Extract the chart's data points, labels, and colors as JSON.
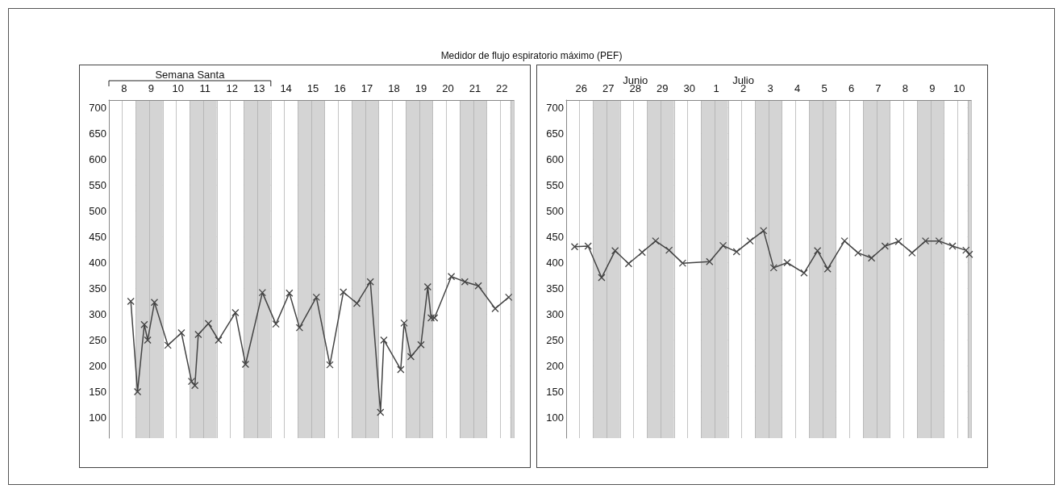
{
  "chart_data": [
    {
      "type": "line",
      "title": "Medidor de flujo espiratorio máximo (PEF)",
      "color": "#444444",
      "marker": "cross",
      "line_style": "solid",
      "grid": true,
      "categories": [
        null,
        null,
        null,
        null,
        "8",
        null,
        null,
        null,
        null,
        null,
        null,
        null,
        "9",
        null,
        null,
        null,
        null,
        null,
        null,
        null,
        "10",
        null,
        null,
        null,
        null,
        null,
        null,
        null,
        "11",
        null,
        null,
        null,
        null,
        null,
        null,
        null,
        "12",
        null,
        null,
        null,
        null,
        null,
        null,
        null,
        "13",
        null,
        null,
        null,
        null,
        null,
        null,
        null,
        "14",
        null,
        null,
        null,
        null,
        null,
        null,
        null,
        "15",
        null,
        null,
        null,
        null,
        null,
        null,
        null,
        "16",
        null,
        null,
        null,
        null,
        null,
        null,
        null,
        "17",
        null,
        null,
        null,
        null,
        null,
        null,
        null,
        "18",
        null,
        null,
        null,
        null,
        null,
        null,
        null,
        "19",
        null,
        null,
        null,
        null,
        null,
        null,
        null,
        "20",
        null,
        null,
        null,
        null,
        null,
        null,
        null,
        "21",
        null,
        null,
        null,
        null,
        null,
        null,
        null,
        "22",
        null,
        null,
        null
      ],
      "values": [
        null,
        null,
        null,
        null,
        null,
        null,
        325,
        null,
        150,
        null,
        280,
        250,
        null,
        323,
        null,
        null,
        null,
        240,
        null,
        null,
        null,
        264,
        null,
        null,
        170,
        162,
        261,
        null,
        null,
        282,
        null,
        null,
        250,
        null,
        null,
        null,
        null,
        303,
        null,
        null,
        203,
        null,
        null,
        null,
        null,
        342,
        null,
        null,
        null,
        281,
        null,
        null,
        null,
        341,
        null,
        null,
        274,
        null,
        null,
        null,
        null,
        333,
        null,
        null,
        null,
        202,
        null,
        null,
        null,
        343,
        null,
        null,
        null,
        321,
        null,
        null,
        null,
        363,
        null,
        null,
        110,
        250,
        null,
        null,
        null,
        null,
        193,
        283,
        null,
        218,
        null,
        null,
        241,
        null,
        353,
        293,
        293,
        null,
        null,
        null,
        null,
        373,
        null,
        null,
        null,
        363,
        null,
        null,
        null,
        355,
        null,
        null,
        null,
        null,
        311,
        null,
        null,
        null,
        333,
        null
      ],
      "ylim": [
        60,
        715
      ],
      "yticks": [
        100,
        150,
        200,
        250,
        300,
        350,
        400,
        450,
        500,
        550,
        600,
        650,
        700
      ],
      "annotations": [
        "Semana Santa"
      ]
    },
    {
      "type": "line",
      "color": "#444444",
      "marker": "cross",
      "line_style": "solid",
      "grid": true,
      "categories": [
        null,
        null,
        null,
        null,
        "26",
        null,
        null,
        null,
        null,
        null,
        null,
        null,
        "27",
        null,
        null,
        null,
        null,
        null,
        null,
        null,
        "28",
        null,
        null,
        null,
        null,
        null,
        null,
        null,
        "29",
        null,
        null,
        null,
        null,
        null,
        null,
        null,
        "30",
        null,
        null,
        null,
        null,
        null,
        null,
        null,
        "1",
        null,
        null,
        null,
        null,
        null,
        null,
        null,
        "2",
        null,
        null,
        null,
        null,
        null,
        null,
        null,
        "3",
        null,
        null,
        null,
        null,
        null,
        null,
        null,
        "4",
        null,
        null,
        null,
        null,
        null,
        null,
        null,
        "5",
        null,
        null,
        null,
        null,
        null,
        null,
        null,
        "6",
        null,
        null,
        null,
        null,
        null,
        null,
        null,
        "7",
        null,
        null,
        null,
        null,
        null,
        null,
        null,
        "8",
        null,
        null,
        null,
        null,
        null,
        null,
        null,
        "9",
        null,
        null,
        null,
        null,
        null,
        null,
        null,
        "10",
        null,
        null,
        null
      ],
      "values": [
        null,
        null,
        431,
        null,
        null,
        null,
        432,
        null,
        null,
        null,
        371,
        null,
        null,
        null,
        423,
        null,
        null,
        null,
        398,
        null,
        null,
        null,
        420,
        null,
        null,
        null,
        442,
        null,
        null,
        null,
        424,
        null,
        null,
        null,
        399,
        null,
        null,
        null,
        null,
        null,
        null,
        null,
        402,
        null,
        null,
        null,
        433,
        null,
        null,
        null,
        421,
        null,
        null,
        null,
        442,
        null,
        null,
        null,
        462,
        null,
        null,
        390,
        null,
        null,
        null,
        400,
        null,
        null,
        null,
        null,
        380,
        null,
        null,
        null,
        423,
        null,
        null,
        388,
        null,
        null,
        null,
        null,
        442,
        null,
        null,
        null,
        419,
        null,
        null,
        null,
        409,
        null,
        null,
        null,
        432,
        null,
        null,
        null,
        441,
        null,
        null,
        null,
        419,
        null,
        null,
        null,
        442,
        null,
        null,
        null,
        442,
        null,
        null,
        null,
        432,
        null,
        null,
        null,
        424,
        416
      ],
      "ylim": [
        60,
        715
      ],
      "yticks": [
        100,
        150,
        200,
        250,
        300,
        350,
        400,
        450,
        500,
        550,
        600,
        650,
        700
      ],
      "annotations": [
        "Junio",
        "Julio"
      ]
    }
  ]
}
